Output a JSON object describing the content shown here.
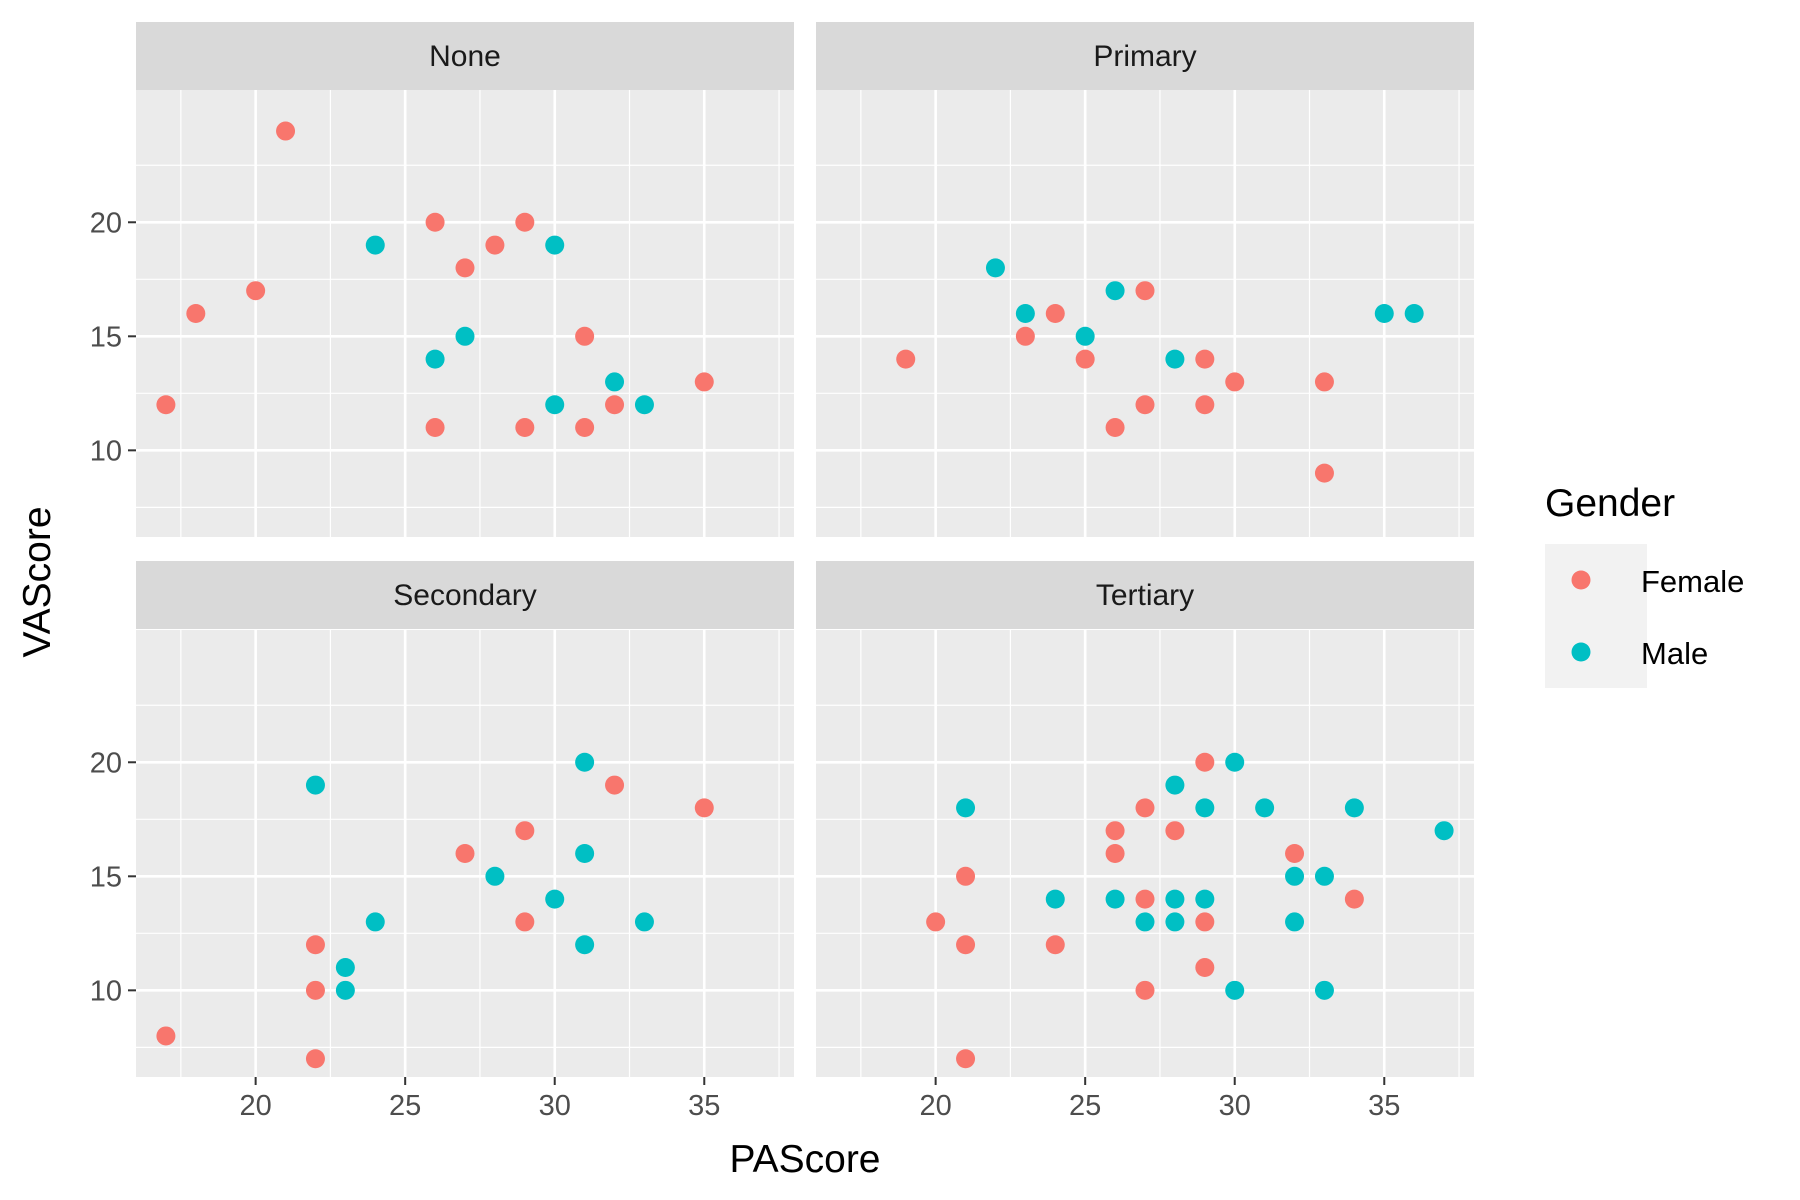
{
  "chart_data": {
    "type": "scatter",
    "xlabel": "PAScore",
    "ylabel": "VAScore",
    "xlim": [
      16,
      38
    ],
    "ylim": [
      6.2,
      25.8
    ],
    "x_ticks": [
      20,
      25,
      30,
      35
    ],
    "y_ticks": [
      10,
      15,
      20
    ],
    "grid": true,
    "legend": {
      "title": "Gender",
      "position": "right",
      "entries": [
        {
          "label": "Female",
          "color": "#F8766D"
        },
        {
          "label": "Male",
          "color": "#00BFC4"
        }
      ]
    },
    "facets": [
      {
        "label": "None",
        "series": [
          {
            "name": "Female",
            "points": [
              [
                17,
                12
              ],
              [
                18,
                16
              ],
              [
                20,
                17
              ],
              [
                21,
                24
              ],
              [
                26,
                20
              ],
              [
                26,
                11
              ],
              [
                27,
                18
              ],
              [
                28,
                19
              ],
              [
                29,
                20
              ],
              [
                29,
                11
              ],
              [
                31,
                15
              ],
              [
                31,
                11
              ],
              [
                32,
                12
              ],
              [
                35,
                13
              ]
            ]
          },
          {
            "name": "Male",
            "points": [
              [
                24,
                19
              ],
              [
                26,
                14
              ],
              [
                27,
                15
              ],
              [
                30,
                19
              ],
              [
                30,
                12
              ],
              [
                32,
                13
              ],
              [
                33,
                12
              ]
            ]
          }
        ]
      },
      {
        "label": "Primary",
        "series": [
          {
            "name": "Female",
            "points": [
              [
                19,
                14
              ],
              [
                23,
                15
              ],
              [
                24,
                16
              ],
              [
                25,
                14
              ],
              [
                26,
                11
              ],
              [
                27,
                17
              ],
              [
                27,
                12
              ],
              [
                29,
                14
              ],
              [
                29,
                12
              ],
              [
                30,
                13
              ],
              [
                33,
                13
              ],
              [
                33,
                9
              ]
            ]
          },
          {
            "name": "Male",
            "points": [
              [
                22,
                18
              ],
              [
                23,
                16
              ],
              [
                25,
                15
              ],
              [
                26,
                17
              ],
              [
                28,
                14
              ],
              [
                35,
                16
              ],
              [
                36,
                16
              ]
            ]
          }
        ]
      },
      {
        "label": "Secondary",
        "series": [
          {
            "name": "Female",
            "points": [
              [
                17,
                8
              ],
              [
                22,
                12
              ],
              [
                22,
                10
              ],
              [
                22,
                7
              ],
              [
                27,
                16
              ],
              [
                29,
                17
              ],
              [
                29,
                13
              ],
              [
                32,
                19
              ],
              [
                35,
                18
              ]
            ]
          },
          {
            "name": "Male",
            "points": [
              [
                22,
                19
              ],
              [
                23,
                11
              ],
              [
                23,
                10
              ],
              [
                24,
                13
              ],
              [
                28,
                15
              ],
              [
                30,
                14
              ],
              [
                31,
                20
              ],
              [
                31,
                16
              ],
              [
                31,
                12
              ],
              [
                33,
                13
              ]
            ]
          }
        ]
      },
      {
        "label": "Tertiary",
        "series": [
          {
            "name": "Female",
            "points": [
              [
                20,
                13
              ],
              [
                21,
                15
              ],
              [
                21,
                12
              ],
              [
                21,
                7
              ],
              [
                24,
                12
              ],
              [
                26,
                17
              ],
              [
                26,
                16
              ],
              [
                27,
                18
              ],
              [
                27,
                14
              ],
              [
                27,
                10
              ],
              [
                28,
                17
              ],
              [
                29,
                20
              ],
              [
                29,
                13
              ],
              [
                29,
                11
              ],
              [
                32,
                16
              ],
              [
                34,
                14
              ]
            ]
          },
          {
            "name": "Male",
            "points": [
              [
                21,
                18
              ],
              [
                24,
                14
              ],
              [
                26,
                14
              ],
              [
                27,
                13
              ],
              [
                28,
                19
              ],
              [
                28,
                14
              ],
              [
                28,
                13
              ],
              [
                29,
                18
              ],
              [
                29,
                14
              ],
              [
                30,
                20
              ],
              [
                30,
                10
              ],
              [
                31,
                18
              ],
              [
                32,
                15
              ],
              [
                32,
                13
              ],
              [
                33,
                15
              ],
              [
                33,
                10
              ],
              [
                34,
                18
              ],
              [
                37,
                17
              ]
            ]
          }
        ]
      }
    ]
  },
  "colors": {
    "panel_bg": "#EBEBEB",
    "strip_bg": "#D9D9D9",
    "grid": "#FFFFFF"
  }
}
